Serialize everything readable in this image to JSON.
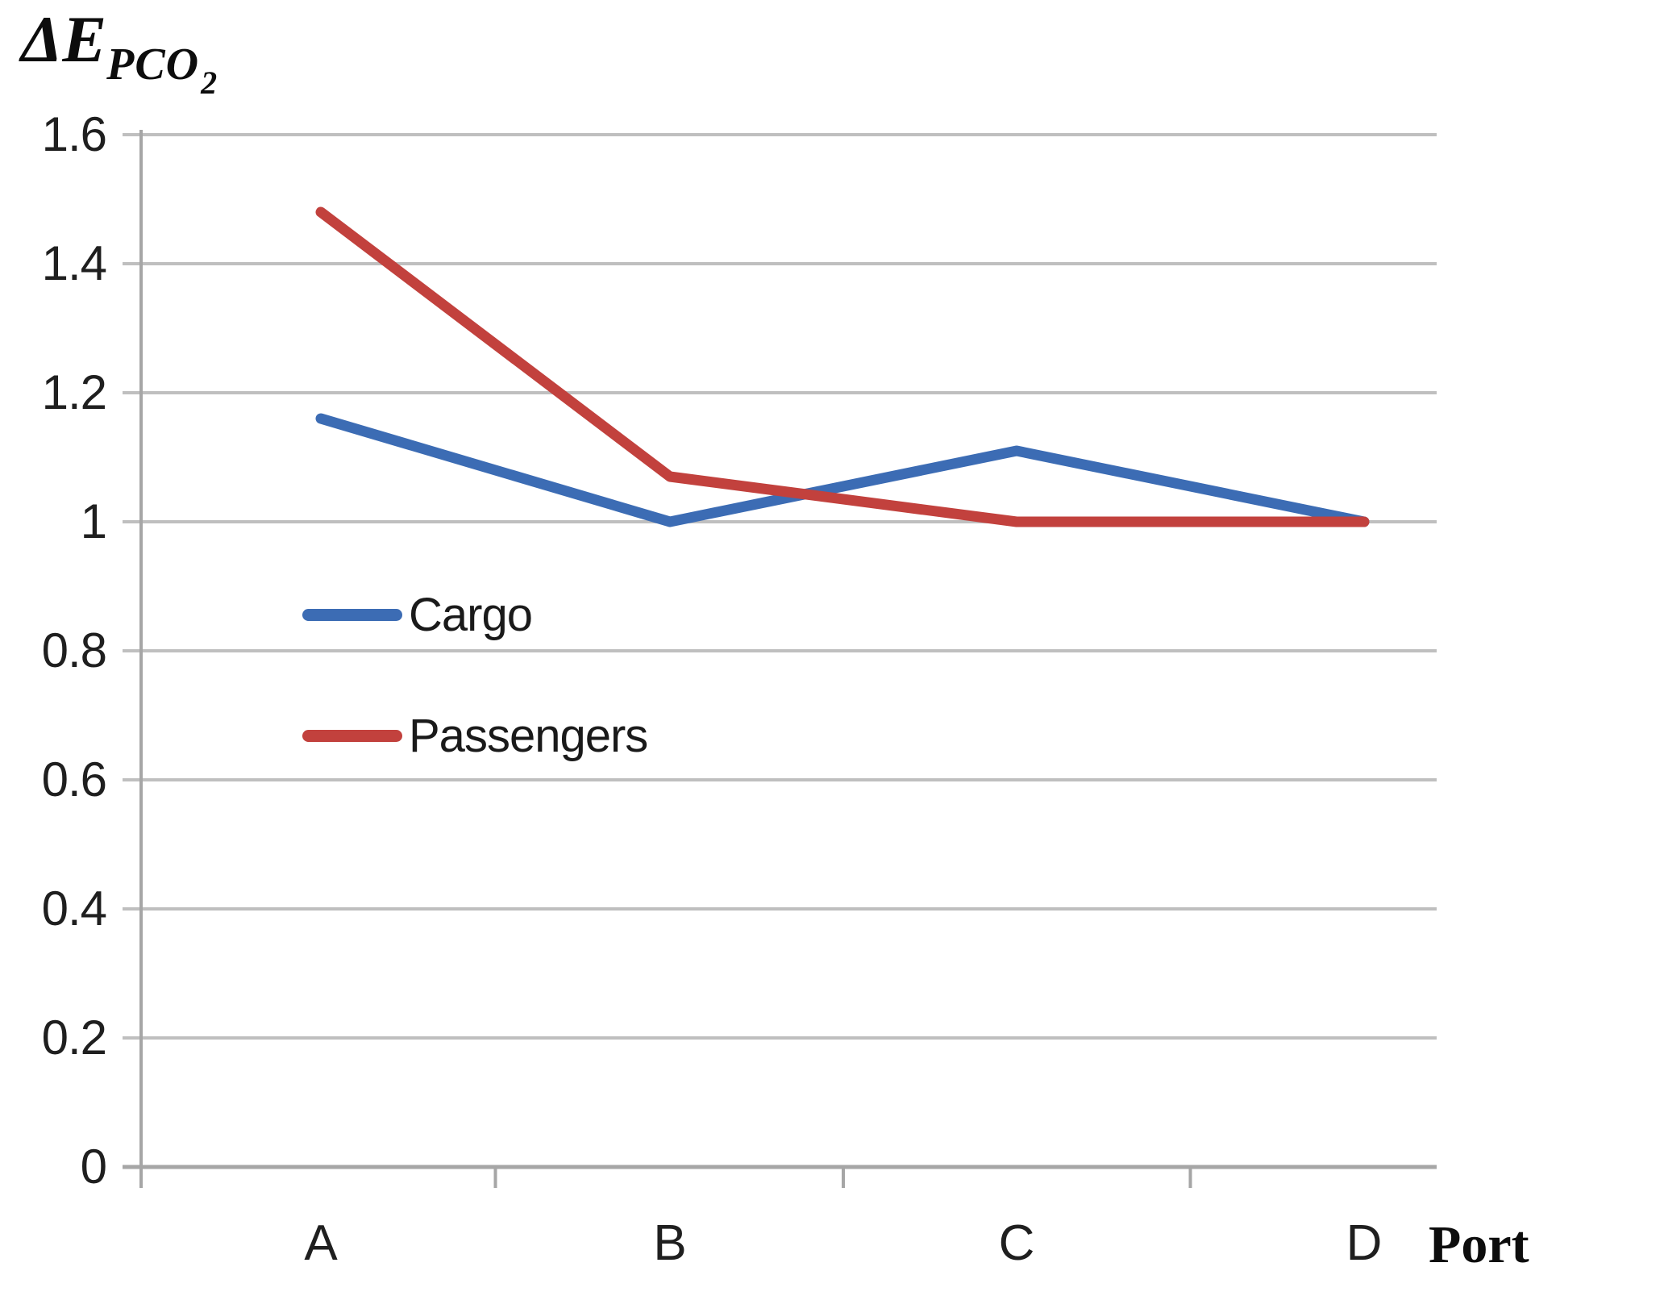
{
  "title": {
    "main": "ΔE",
    "sub": "PCO",
    "subsub": "2"
  },
  "x_axis": {
    "label": "Port"
  },
  "colors": {
    "cargo": "#3C6CB4",
    "passengers": "#C2413D",
    "gridline": "#BFBFBF",
    "axis": "#A6A6A6",
    "text": "#1F1F1F",
    "background": "#FFFFFF"
  },
  "chart_data": {
    "type": "line",
    "title": "ΔE_PCO2 by Port",
    "xlabel": "Port",
    "ylabel": "ΔE_PCO2",
    "categories": [
      "A",
      "B",
      "C",
      "D"
    ],
    "series": [
      {
        "name": "Cargo",
        "color_key": "cargo",
        "values": [
          1.16,
          1.0,
          1.11,
          1.0
        ]
      },
      {
        "name": "Passengers",
        "color_key": "passengers",
        "values": [
          1.48,
          1.07,
          1.0,
          1.0
        ]
      }
    ],
    "ylim": [
      0,
      1.6
    ],
    "y_tick_step": 0.2,
    "y_tick_labels": [
      "1.6",
      "1.4",
      "1.2",
      "1",
      "0.8",
      "0.6",
      "0.4",
      "0.2",
      "0"
    ],
    "grid": "horizontal",
    "legend_position": "inside-left-middle"
  }
}
